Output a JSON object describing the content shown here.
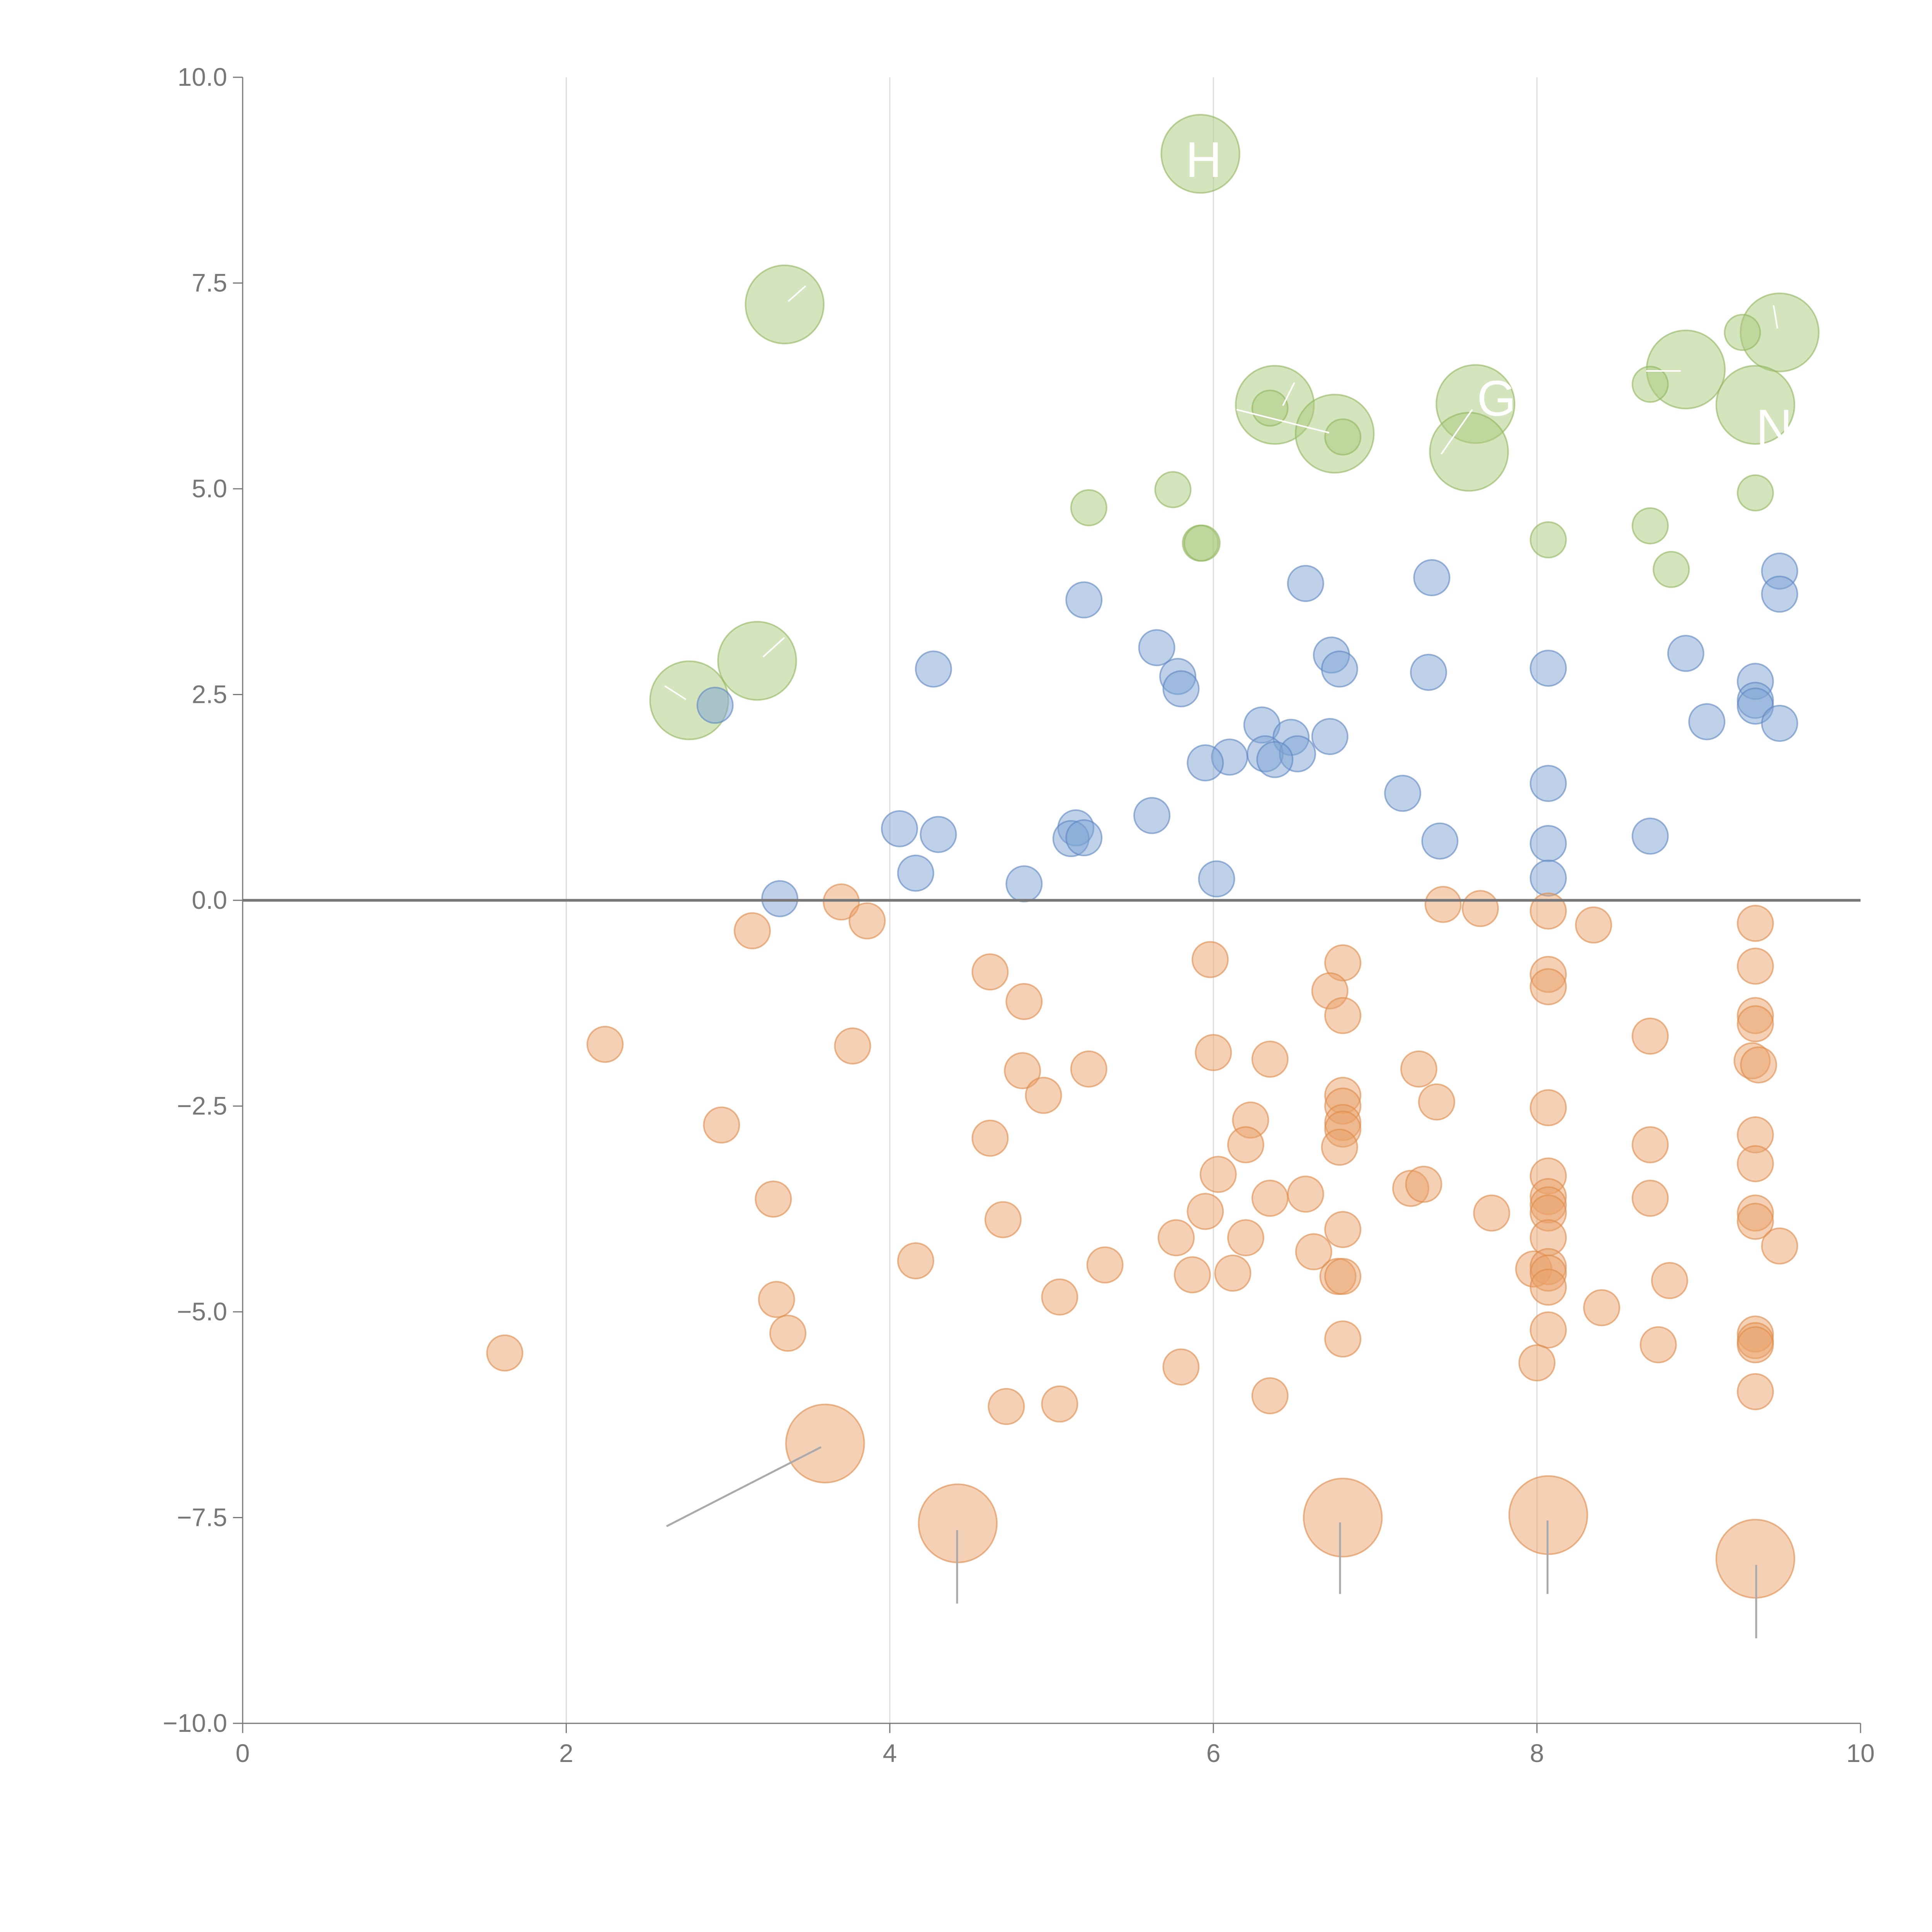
{
  "chart_data": {
    "type": "scatter",
    "title": "",
    "xlabel": "",
    "ylabel": "",
    "xlim": [
      0,
      10
    ],
    "ylim": [
      -10,
      10
    ],
    "x_ticks": [
      "0",
      "2",
      "4",
      "6",
      "8",
      "10"
    ],
    "y_ticks": [
      "10.0",
      "7.5",
      "5.0",
      "2.5",
      "0.0",
      "−2.5",
      "−5.0",
      "−7.5",
      "−10.0"
    ],
    "x_tick_values": [
      0,
      2,
      4,
      6,
      8,
      10
    ],
    "y_tick_values": [
      10,
      7.5,
      5,
      2.5,
      0,
      -2.5,
      -5,
      -7.5,
      -10
    ],
    "colors": {
      "green_fill": "#a9c97c",
      "green_stroke": "#8fb65c",
      "blue_fill": "#7ea3d4",
      "blue_stroke": "#5b86c2",
      "orange_fill": "#e9a26a",
      "orange_stroke": "#dd8a48"
    },
    "series": [
      {
        "name": "green",
        "color": "#a9c97c",
        "points": [
          [
            5.92,
            9.07,
            2.2
          ],
          [
            3.35,
            7.24,
            2.2
          ],
          [
            9.5,
            6.9,
            2.2
          ],
          [
            8.92,
            6.45,
            2.2
          ],
          [
            9.35,
            6.02,
            2.2
          ],
          [
            6.38,
            6.02,
            2.2
          ],
          [
            6.75,
            5.67,
            2.2
          ],
          [
            7.62,
            6.03,
            2.2
          ],
          [
            7.58,
            5.45,
            2.2
          ],
          [
            3.18,
            2.91,
            2.2
          ],
          [
            2.76,
            2.43,
            2.2
          ],
          [
            9.27,
            6.9,
            1
          ],
          [
            8.7,
            6.27,
            1
          ],
          [
            6.35,
            5.98,
            1
          ],
          [
            6.8,
            5.63,
            1
          ],
          [
            5.23,
            4.77,
            1
          ],
          [
            5.75,
            4.99,
            1
          ],
          [
            9.35,
            4.95,
            1
          ],
          [
            5.92,
            4.34,
            1
          ],
          [
            5.93,
            4.34,
            1
          ],
          [
            8.07,
            4.38,
            1
          ],
          [
            8.7,
            4.55,
            1
          ],
          [
            8.83,
            4.02,
            1
          ]
        ]
      },
      {
        "name": "blue",
        "color": "#7ea3d4",
        "points": [
          [
            6.57,
            3.85,
            1
          ],
          [
            5.2,
            3.65,
            1
          ],
          [
            7.35,
            3.92,
            1
          ],
          [
            9.5,
            4.0,
            1
          ],
          [
            9.5,
            3.72,
            1
          ],
          [
            5.65,
            3.07,
            1
          ],
          [
            5.78,
            2.72,
            1
          ],
          [
            5.8,
            2.57,
            1
          ],
          [
            6.73,
            2.98,
            1
          ],
          [
            6.78,
            2.81,
            1
          ],
          [
            7.33,
            2.77,
            1
          ],
          [
            8.07,
            2.82,
            1
          ],
          [
            8.92,
            3.0,
            1
          ],
          [
            9.35,
            2.66,
            1
          ],
          [
            9.35,
            2.43,
            1
          ],
          [
            9.35,
            2.36,
            1
          ],
          [
            9.05,
            2.17,
            1
          ],
          [
            9.5,
            2.15,
            1
          ],
          [
            4.27,
            2.81,
            1
          ],
          [
            2.92,
            2.37,
            1
          ],
          [
            6.3,
            2.13,
            1
          ],
          [
            6.48,
            1.98,
            1
          ],
          [
            6.72,
            1.99,
            1
          ],
          [
            6.32,
            1.78,
            1
          ],
          [
            6.52,
            1.78,
            1
          ],
          [
            6.38,
            1.71,
            1
          ],
          [
            6.1,
            1.74,
            1
          ],
          [
            5.95,
            1.67,
            1
          ],
          [
            7.17,
            1.3,
            1
          ],
          [
            8.07,
            1.42,
            1
          ],
          [
            4.06,
            0.87,
            1
          ],
          [
            4.3,
            0.8,
            1
          ],
          [
            5.15,
            0.88,
            1
          ],
          [
            5.12,
            0.75,
            1
          ],
          [
            5.2,
            0.76,
            1
          ],
          [
            5.62,
            1.03,
            1
          ],
          [
            7.4,
            0.72,
            1
          ],
          [
            8.07,
            0.69,
            1
          ],
          [
            8.7,
            0.78,
            1
          ],
          [
            4.16,
            0.33,
            1
          ],
          [
            4.83,
            0.2,
            1
          ],
          [
            6.02,
            0.26,
            1
          ],
          [
            8.07,
            0.27,
            1
          ],
          [
            3.32,
            0.02,
            1
          ]
        ]
      },
      {
        "name": "orange",
        "color": "#e9a26a",
        "points": [
          [
            3.7,
            -0.02,
            1
          ],
          [
            3.86,
            -0.25,
            1
          ],
          [
            3.15,
            -0.37,
            1
          ],
          [
            7.42,
            -0.05,
            1
          ],
          [
            7.65,
            -0.1,
            1
          ],
          [
            8.07,
            -0.13,
            1
          ],
          [
            8.35,
            -0.3,
            1
          ],
          [
            9.35,
            -0.28,
            1
          ],
          [
            5.98,
            -0.72,
            1
          ],
          [
            6.8,
            -0.76,
            1
          ],
          [
            8.07,
            -0.9,
            1
          ],
          [
            8.07,
            -1.05,
            1
          ],
          [
            9.35,
            -0.8,
            1
          ],
          [
            4.62,
            -0.87,
            1
          ],
          [
            4.83,
            -1.23,
            1
          ],
          [
            6.72,
            -1.1,
            1
          ],
          [
            6.8,
            -1.4,
            1
          ],
          [
            9.35,
            -1.4,
            1
          ],
          [
            9.35,
            -1.5,
            1
          ],
          [
            8.7,
            -1.65,
            1
          ],
          [
            2.24,
            -1.75,
            1
          ],
          [
            3.77,
            -1.77,
            1
          ],
          [
            6.0,
            -1.85,
            1
          ],
          [
            6.35,
            -1.93,
            1
          ],
          [
            9.33,
            -1.95,
            1
          ],
          [
            9.37,
            -2.0,
            1
          ],
          [
            4.82,
            -2.07,
            1
          ],
          [
            5.23,
            -2.05,
            1
          ],
          [
            7.27,
            -2.05,
            1
          ],
          [
            4.95,
            -2.37,
            1
          ],
          [
            6.8,
            -2.37,
            1
          ],
          [
            6.8,
            -2.5,
            1
          ],
          [
            7.38,
            -2.45,
            1
          ],
          [
            8.07,
            -2.52,
            1
          ],
          [
            2.96,
            -2.73,
            1
          ],
          [
            6.23,
            -2.67,
            1
          ],
          [
            6.8,
            -2.7,
            1
          ],
          [
            6.8,
            -2.78,
            1
          ],
          [
            4.62,
            -2.89,
            1
          ],
          [
            6.2,
            -2.97,
            1
          ],
          [
            6.78,
            -3.0,
            1
          ],
          [
            8.7,
            -2.97,
            1
          ],
          [
            9.35,
            -2.85,
            1
          ],
          [
            9.35,
            -3.2,
            1
          ],
          [
            6.03,
            -3.33,
            1
          ],
          [
            8.07,
            -3.35,
            1
          ],
          [
            7.22,
            -3.5,
            1
          ],
          [
            7.3,
            -3.45,
            1
          ],
          [
            6.35,
            -3.62,
            1
          ],
          [
            6.57,
            -3.57,
            1
          ],
          [
            8.07,
            -3.6,
            1
          ],
          [
            8.07,
            -3.7,
            1
          ],
          [
            8.7,
            -3.62,
            1
          ],
          [
            3.28,
            -3.63,
            1
          ],
          [
            5.95,
            -3.78,
            1
          ],
          [
            7.72,
            -3.8,
            1
          ],
          [
            8.07,
            -3.8,
            1
          ],
          [
            9.35,
            -3.8,
            1
          ],
          [
            9.35,
            -3.9,
            1
          ],
          [
            4.7,
            -3.88,
            1
          ],
          [
            6.8,
            -4.0,
            1
          ],
          [
            5.77,
            -4.1,
            1
          ],
          [
            6.2,
            -4.1,
            1
          ],
          [
            8.07,
            -4.1,
            1
          ],
          [
            9.5,
            -4.2,
            1
          ],
          [
            6.62,
            -4.27,
            1
          ],
          [
            4.16,
            -4.38,
            1
          ],
          [
            5.33,
            -4.43,
            1
          ],
          [
            7.98,
            -4.48,
            1
          ],
          [
            8.07,
            -4.45,
            1
          ],
          [
            8.07,
            -4.53,
            1
          ],
          [
            5.87,
            -4.55,
            1
          ],
          [
            6.12,
            -4.53,
            1
          ],
          [
            6.77,
            -4.57,
            1
          ],
          [
            6.8,
            -4.57,
            1
          ],
          [
            8.07,
            -4.7,
            1
          ],
          [
            8.82,
            -4.62,
            1
          ],
          [
            3.3,
            -4.85,
            1
          ],
          [
            5.05,
            -4.82,
            1
          ],
          [
            8.4,
            -4.95,
            1
          ],
          [
            3.37,
            -5.26,
            1
          ],
          [
            8.07,
            -5.22,
            1
          ],
          [
            9.35,
            -5.27,
            1
          ],
          [
            9.35,
            -5.35,
            1
          ],
          [
            9.35,
            -5.4,
            1
          ],
          [
            6.8,
            -5.33,
            1
          ],
          [
            8.75,
            -5.4,
            1
          ],
          [
            1.62,
            -5.5,
            1
          ],
          [
            8.0,
            -5.62,
            1
          ],
          [
            5.8,
            -5.67,
            1
          ],
          [
            9.35,
            -5.97,
            1
          ],
          [
            6.35,
            -6.02,
            1
          ],
          [
            4.72,
            -6.15,
            1
          ],
          [
            5.05,
            -6.12,
            1
          ],
          [
            3.6,
            -6.6,
            2.2
          ],
          [
            4.42,
            -7.57,
            2.2
          ],
          [
            6.8,
            -7.5,
            2.2
          ],
          [
            8.07,
            -7.47,
            2.2
          ],
          [
            9.35,
            -8.0,
            2.2
          ]
        ]
      }
    ],
    "annotations": [
      {
        "text": "H",
        "x": 5.94,
        "y": 9.0
      },
      {
        "text": "G",
        "x": 7.75,
        "y": 6.1
      },
      {
        "text": "NE",
        "x": 9.57,
        "y": 5.75
      }
    ]
  }
}
